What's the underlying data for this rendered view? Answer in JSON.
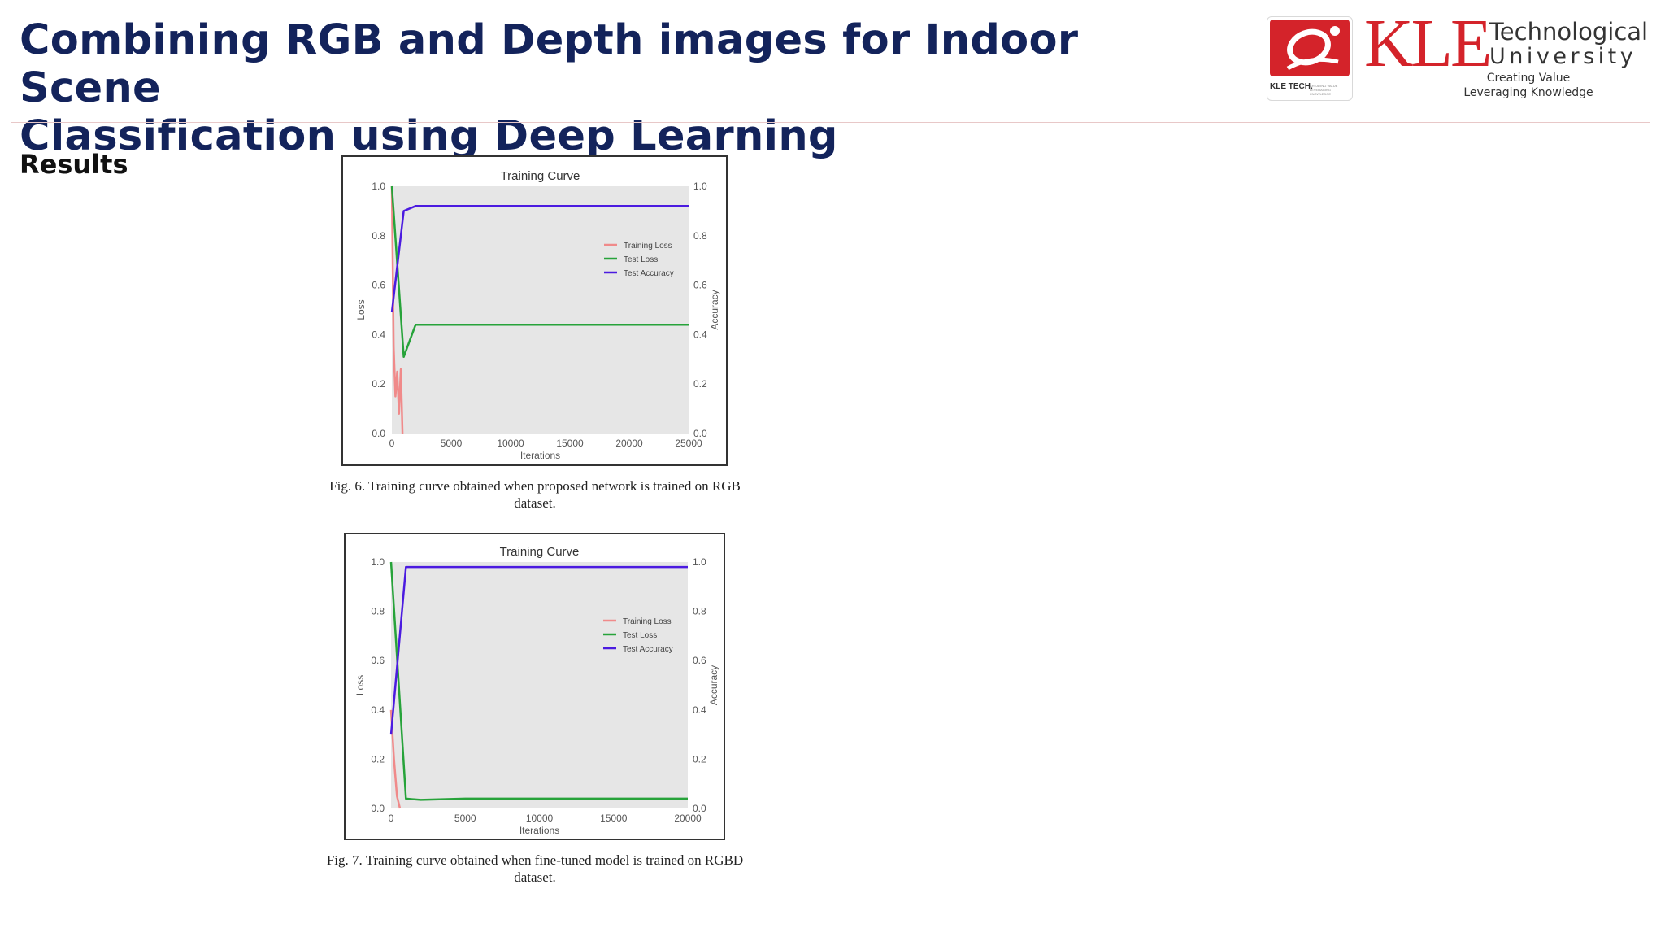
{
  "slide": {
    "title_line1": "Combining RGB and Depth images for Indoor Scene",
    "title_line2": "Classification using Deep Learning",
    "section_heading": "Results"
  },
  "logo": {
    "wordmark": "KLE",
    "line1": "Technological",
    "line2": "University",
    "tagline1": "Creating Value",
    "tagline2": "Leveraging Knowledge",
    "badge_text": "KLE TECH.",
    "badge_small": "CREATING VALUE LEVERAGING KNOWLEDGE",
    "brand_color": "#d4232a"
  },
  "colors": {
    "title": "#13235b",
    "training_loss": "#f08a8a",
    "test_loss": "#27a33a",
    "test_accuracy": "#4b1be0",
    "plot_bg": "#e6e6e6"
  },
  "figures": [
    {
      "caption_line1": "Fig. 6.   Training curve obtained when proposed network is trained on RGB",
      "caption_line2": "dataset."
    },
    {
      "caption_line1": "Fig. 7.   Training curve obtained when fine-tuned model is trained on RGBD",
      "caption_line2": "dataset."
    }
  ],
  "chart_data": [
    {
      "type": "line",
      "title": "Training Curve",
      "xlabel": "Iterations",
      "ylabel": "Loss",
      "y2label": "Accuracy",
      "xlim": [
        0,
        25000
      ],
      "ylim": [
        0,
        1.0
      ],
      "y2lim": [
        0,
        1.0
      ],
      "xticks": [
        "0",
        "5000",
        "10000",
        "15000",
        "20000",
        "25000"
      ],
      "xtick_values": [
        0,
        5000,
        10000,
        15000,
        20000,
        25000
      ],
      "yticks": [
        "0.0",
        "0.2",
        "0.4",
        "0.6",
        "0.8",
        "1.0"
      ],
      "ytick_values": [
        0,
        0.2,
        0.4,
        0.6,
        0.8,
        1.0
      ],
      "legend": [
        "Training Loss",
        "Test Loss",
        "Test Accuracy"
      ],
      "legend_position": "right",
      "series": [
        {
          "name": "Training Loss",
          "axis": "y",
          "x": [
            0,
            150,
            300,
            450,
            600,
            750,
            900
          ],
          "y": [
            1.0,
            0.35,
            0.15,
            0.25,
            0.08,
            0.26,
            0.0
          ]
        },
        {
          "name": "Test Loss",
          "axis": "y",
          "x": [
            0,
            1000,
            2000,
            5000,
            10000,
            15000,
            20000,
            25000
          ],
          "y": [
            1.0,
            0.31,
            0.44,
            0.44,
            0.44,
            0.44,
            0.44,
            0.44
          ]
        },
        {
          "name": "Test Accuracy",
          "axis": "y2",
          "x": [
            0,
            1000,
            2000,
            5000,
            10000,
            15000,
            20000,
            25000
          ],
          "y": [
            0.49,
            0.9,
            0.92,
            0.92,
            0.92,
            0.92,
            0.92,
            0.92
          ]
        }
      ]
    },
    {
      "type": "line",
      "title": "Training Curve",
      "xlabel": "Iterations",
      "ylabel": "Loss",
      "y2label": "Accuracy",
      "xlim": [
        0,
        20000
      ],
      "ylim": [
        0,
        1.0
      ],
      "y2lim": [
        0,
        1.0
      ],
      "xticks": [
        "0",
        "5000",
        "10000",
        "15000",
        "20000"
      ],
      "xtick_values": [
        0,
        5000,
        10000,
        15000,
        20000
      ],
      "yticks": [
        "0.0",
        "0.2",
        "0.4",
        "0.6",
        "0.8",
        "1.0"
      ],
      "ytick_values": [
        0,
        0.2,
        0.4,
        0.6,
        0.8,
        1.0
      ],
      "legend": [
        "Training Loss",
        "Test Loss",
        "Test Accuracy"
      ],
      "legend_position": "right",
      "series": [
        {
          "name": "Training Loss",
          "axis": "y",
          "x": [
            0,
            200,
            400,
            600
          ],
          "y": [
            0.4,
            0.2,
            0.05,
            0.0
          ]
        },
        {
          "name": "Test Loss",
          "axis": "y",
          "x": [
            0,
            1000,
            2000,
            5000,
            10000,
            15000,
            20000
          ],
          "y": [
            1.0,
            0.04,
            0.035,
            0.04,
            0.04,
            0.04,
            0.04
          ]
        },
        {
          "name": "Test Accuracy",
          "axis": "y2",
          "x": [
            0,
            1000,
            2000,
            5000,
            10000,
            15000,
            20000
          ],
          "y": [
            0.3,
            0.98,
            0.98,
            0.98,
            0.98,
            0.98,
            0.98
          ]
        }
      ]
    }
  ]
}
